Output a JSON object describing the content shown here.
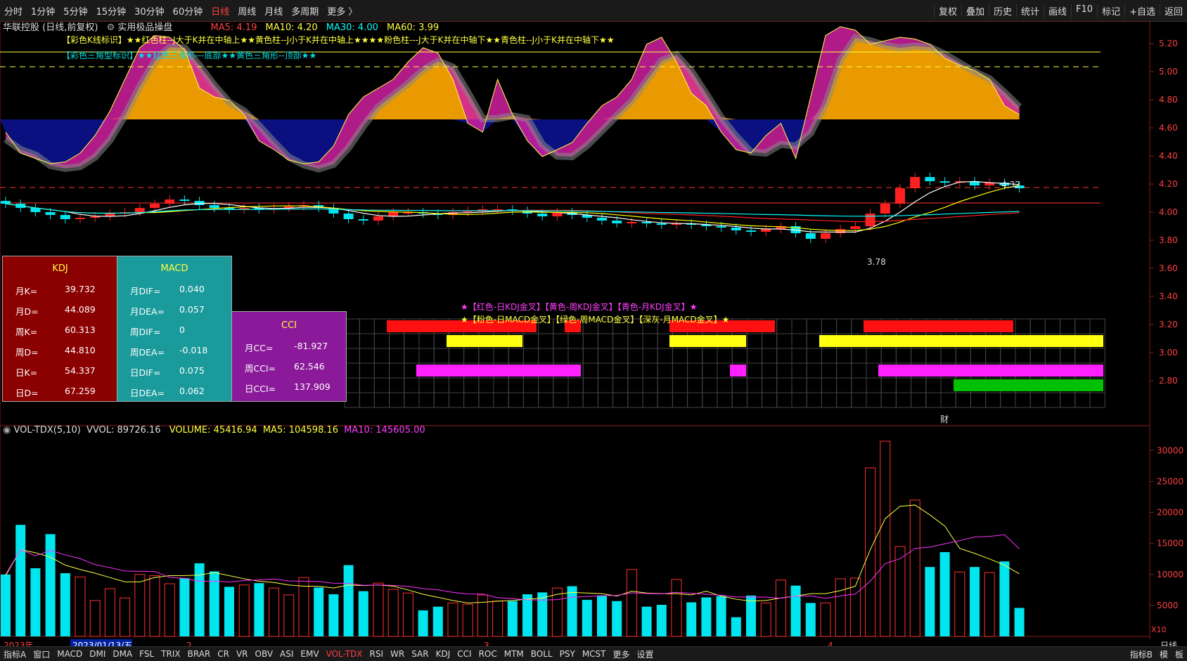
{
  "toolbar": {
    "periods": [
      "分时",
      "1分钟",
      "5分钟",
      "15分钟",
      "30分钟",
      "60分钟",
      "日线",
      "周线",
      "月线",
      "多周期",
      "更多 〉"
    ],
    "active_period": "日线",
    "right_buttons": [
      "复权",
      "叠加",
      "历史",
      "统计",
      "画线",
      "F10",
      "标记",
      "+自选",
      "返回"
    ]
  },
  "chart_header": {
    "stock": "华联控股 (日线,前复权)",
    "formula": "实用极品操盘",
    "ma5": "MA5: 4.19",
    "ma10": "MA10: 4.20",
    "ma30": "MA30: 4.00",
    "ma60": "MA60: 3.99"
  },
  "legend_lines": {
    "line1": "【彩色K线标识】★★红色柱--J大于K并在中轴上★★黄色柱--J小于K并在中轴上★★★★粉色柱---J大于K并在中轴下★★青色柱--J小于K并在中轴下★★",
    "line2": "【彩色三角型标识】★★红色三角形---底部★★黄色三角形--顶部★★",
    "line3": "★【红色-日KDJ金叉】【黄色-周KDJ金叉】【青色-月KDJ金叉】★",
    "line4": "★【粉色-日MACD金叉】【绿色-周MACD金叉】【深灰-月MACD金叉】★"
  },
  "price_axis": [
    "5.20",
    "5.00",
    "4.80",
    "4.60",
    "4.40",
    "4.20",
    "4.00",
    "3.80",
    "3.60",
    "3.40",
    "3.20",
    "3.00",
    "2.80"
  ],
  "annotations": {
    "high": "4.32",
    "low": "3.78",
    "fin": "财"
  },
  "kdj_panel": {
    "title": "KDJ",
    "rows": [
      [
        "月K=",
        "39.732"
      ],
      [
        "月D=",
        "44.089"
      ],
      [
        "周K=",
        "60.313"
      ],
      [
        "周D=",
        "44.810"
      ],
      [
        "日K=",
        "54.337"
      ],
      [
        "日D=",
        "67.259"
      ]
    ]
  },
  "macd_panel": {
    "title": "MACD",
    "rows": [
      [
        "月DIF=",
        "0.040"
      ],
      [
        "月DEA=",
        "0.057"
      ],
      [
        "周DIF=",
        "0"
      ],
      [
        "周DEA=",
        "-0.018"
      ],
      [
        "日DIF=",
        "0.075"
      ],
      [
        "日DEA=",
        "0.062"
      ]
    ]
  },
  "cci_panel": {
    "title": "CCI",
    "rows": [
      [
        "月CC=",
        "-81.927"
      ],
      [
        "周CCI=",
        "62.546"
      ],
      [
        "日CCI=",
        "137.909"
      ]
    ]
  },
  "volume_header": {
    "name": "VOL-TDX(5,10)",
    "vvol": "VVOL: 89726.16",
    "volume": "VOLUME: 45416.94",
    "ma5": "MA5: 104598.16",
    "ma10": "MA10: 145605.00"
  },
  "volume_axis": [
    "30000",
    "25000",
    "20000",
    "15000",
    "10000",
    "5000"
  ],
  "volume_unit": "X10",
  "date_axis": {
    "year": "2023年",
    "cursor_date": "2023/01/13/五",
    "m2": "2",
    "m3": "3",
    "m4": "4",
    "label": "日线"
  },
  "indicator_tabs": [
    "指标A",
    "窗口",
    "MACD",
    "DMI",
    "DMA",
    "FSL",
    "TRIX",
    "BRAR",
    "CR",
    "VR",
    "OBV",
    "ASI",
    "EMV",
    "VOL-TDX",
    "RSI",
    "WR",
    "SAR",
    "KDJ",
    "CCI",
    "ROC",
    "MTM",
    "BOLL",
    "PSY",
    "MCST",
    "更多",
    "设置"
  ],
  "active_indicator": "VOL-TDX",
  "indicator_right": [
    "指标B",
    "模",
    "板"
  ],
  "colors": {
    "up": "#ff2020",
    "down": "#00e5ee",
    "ma5": "#ffffff",
    "ma10": "#ffff00",
    "ma30": "#ff4040",
    "ma60": "#00ffff"
  },
  "volumes": [
    10000,
    18000,
    11000,
    16500,
    10200,
    9600,
    5800,
    7700,
    6200,
    10000,
    9800,
    8500,
    9400,
    11800,
    10500,
    8000,
    8300,
    8600,
    7800,
    6700,
    9500,
    7900,
    6800,
    11500,
    7300,
    8600,
    7600,
    7000,
    4200,
    4800,
    5400,
    5200,
    6700,
    5700,
    5700,
    6800,
    7100,
    7800,
    8100,
    5900,
    6600,
    5700,
    10800,
    4800,
    5100,
    9200,
    5500,
    6300,
    6500,
    3100,
    6600,
    5400,
    9100,
    8200,
    5400,
    5400,
    9300,
    9400,
    27200,
    31500,
    14500,
    22000,
    11200,
    13600,
    10400,
    11200,
    10300,
    12100,
    4600
  ],
  "vol_ma5": [
    9800,
    14000,
    13500,
    12800,
    11500,
    10800,
    10200,
    9500,
    8800,
    8800,
    9500,
    9800,
    9800,
    9900,
    10300,
    9800,
    9300,
    8900,
    8700,
    8300,
    8100,
    8100,
    7800,
    8300,
    8200,
    8300,
    8100,
    7500,
    6800,
    6300,
    5800,
    5400,
    5500,
    5700,
    5800,
    6000,
    6200,
    6800,
    7100,
    7000,
    6900,
    6500,
    7300,
    7000,
    6900,
    6900,
    6700,
    7300,
    6500,
    6000,
    5700,
    5800,
    6200,
    6500,
    6900,
    6900,
    7400,
    8100,
    14000,
    19000,
    21000,
    21200,
    19600,
    17800,
    14200,
    13400,
    12500,
    11500,
    10100
  ]
}
